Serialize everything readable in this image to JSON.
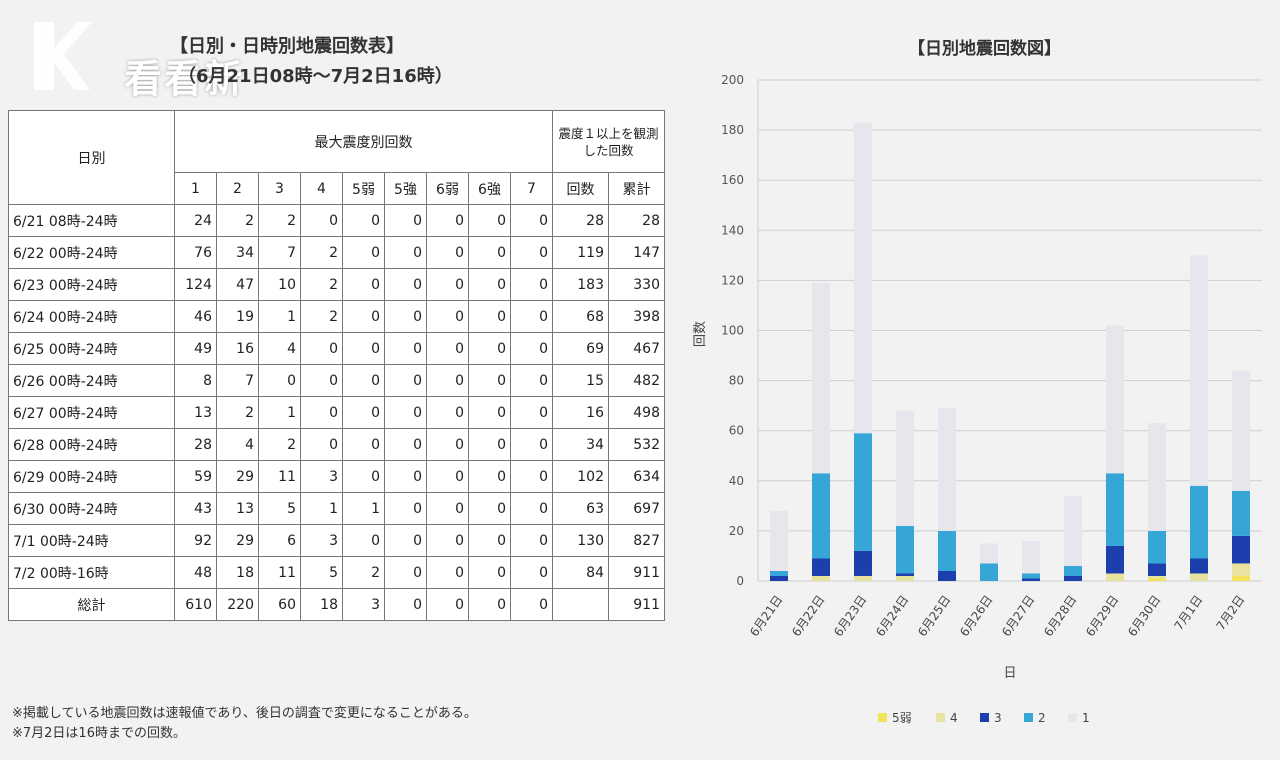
{
  "watermark": {
    "brand_text": "看看新闻"
  },
  "table": {
    "title_line1": "【日別・日時別地震回数表】",
    "title_line2": "（6月21日08時～7月2日16時）",
    "header": {
      "day": "日別",
      "max_intensity": "最大震度別回数",
      "observed": "震度１以上を観測した回数",
      "intensities": [
        "1",
        "2",
        "3",
        "4",
        "5弱",
        "5強",
        "6弱",
        "6強",
        "7"
      ],
      "count": "回数",
      "cumulative": "累計"
    },
    "rows": [
      {
        "date": "6/21 08時-24時",
        "values": [
          "24",
          "2",
          "2",
          "0",
          "0",
          "0",
          "0",
          "0",
          "0"
        ],
        "count": "28",
        "cum": "28"
      },
      {
        "date": "6/22 00時-24時",
        "values": [
          "76",
          "34",
          "7",
          "2",
          "0",
          "0",
          "0",
          "0",
          "0"
        ],
        "count": "119",
        "cum": "147"
      },
      {
        "date": "6/23 00時-24時",
        "values": [
          "124",
          "47",
          "10",
          "2",
          "0",
          "0",
          "0",
          "0",
          "0"
        ],
        "count": "183",
        "cum": "330"
      },
      {
        "date": "6/24 00時-24時",
        "values": [
          "46",
          "19",
          "1",
          "2",
          "0",
          "0",
          "0",
          "0",
          "0"
        ],
        "count": "68",
        "cum": "398"
      },
      {
        "date": "6/25 00時-24時",
        "values": [
          "49",
          "16",
          "4",
          "0",
          "0",
          "0",
          "0",
          "0",
          "0"
        ],
        "count": "69",
        "cum": "467"
      },
      {
        "date": "6/26 00時-24時",
        "values": [
          "8",
          "7",
          "0",
          "0",
          "0",
          "0",
          "0",
          "0",
          "0"
        ],
        "count": "15",
        "cum": "482"
      },
      {
        "date": "6/27 00時-24時",
        "values": [
          "13",
          "2",
          "1",
          "0",
          "0",
          "0",
          "0",
          "0",
          "0"
        ],
        "count": "16",
        "cum": "498"
      },
      {
        "date": "6/28 00時-24時",
        "values": [
          "28",
          "4",
          "2",
          "0",
          "0",
          "0",
          "0",
          "0",
          "0"
        ],
        "count": "34",
        "cum": "532"
      },
      {
        "date": "6/29 00時-24時",
        "values": [
          "59",
          "29",
          "11",
          "3",
          "0",
          "0",
          "0",
          "0",
          "0"
        ],
        "count": "102",
        "cum": "634"
      },
      {
        "date": "6/30 00時-24時",
        "values": [
          "43",
          "13",
          "5",
          "1",
          "1",
          "0",
          "0",
          "0",
          "0"
        ],
        "count": "63",
        "cum": "697"
      },
      {
        "date": "7/1 00時-24時",
        "values": [
          "92",
          "29",
          "6",
          "3",
          "0",
          "0",
          "0",
          "0",
          "0"
        ],
        "count": "130",
        "cum": "827"
      },
      {
        "date": "7/2 00時-16時",
        "values": [
          "48",
          "18",
          "11",
          "5",
          "2",
          "0",
          "0",
          "0",
          "0"
        ],
        "count": "84",
        "cum": "911"
      }
    ],
    "total": {
      "label": "総計",
      "values": [
        "610",
        "220",
        "60",
        "18",
        "3",
        "0",
        "0",
        "0",
        "0"
      ],
      "count": "",
      "cum": "911"
    }
  },
  "notes": [
    "※掲載している地震回数は速報値であり、後日の調査で変更になることがある。",
    "※7月2日は16時までの回数。"
  ],
  "chart_data": {
    "type": "bar",
    "stacked": true,
    "title": "【日別地震回数図】",
    "xlabel": "日",
    "ylabel": "回数",
    "ylim": [
      0,
      200
    ],
    "yticks": [
      0,
      20,
      40,
      60,
      80,
      100,
      120,
      140,
      160,
      180,
      200
    ],
    "grid": true,
    "legend_position": "bottom",
    "categories": [
      "6月21日",
      "6月22日",
      "6月23日",
      "6月24日",
      "6月25日",
      "6月26日",
      "6月27日",
      "6月28日",
      "6月29日",
      "6月30日",
      "7月1日",
      "7月2日"
    ],
    "series": [
      {
        "name": "5弱",
        "color": "#f2e35a",
        "values": [
          0,
          0,
          0,
          0,
          0,
          0,
          0,
          0,
          0,
          1,
          0,
          2
        ]
      },
      {
        "name": "4",
        "color": "#e8e4a0",
        "values": [
          0,
          2,
          2,
          2,
          0,
          0,
          0,
          0,
          3,
          1,
          3,
          5
        ]
      },
      {
        "name": "3",
        "color": "#1d3fae",
        "values": [
          2,
          7,
          10,
          1,
          4,
          0,
          1,
          2,
          11,
          5,
          6,
          11
        ]
      },
      {
        "name": "2",
        "color": "#36a6d6",
        "values": [
          2,
          34,
          47,
          19,
          16,
          7,
          2,
          4,
          29,
          13,
          29,
          18
        ]
      },
      {
        "name": "1",
        "color": "#e6e6ec",
        "values": [
          24,
          76,
          124,
          46,
          49,
          8,
          13,
          28,
          59,
          43,
          92,
          48
        ]
      }
    ],
    "legend_order": [
      "5弱",
      "4",
      "3",
      "2",
      "1"
    ]
  }
}
